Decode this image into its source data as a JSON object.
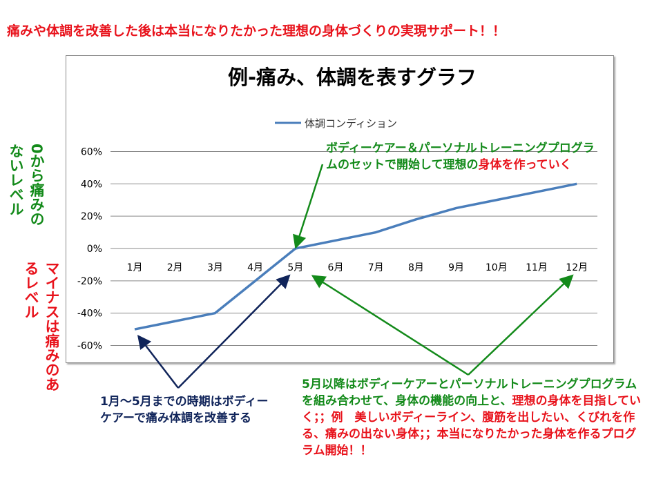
{
  "headline": "痛みや体調を改善した後は本当になりたかった理想の身体づくりの実現サポート！！",
  "side_labels": {
    "positive": "0から痛みのないレベル",
    "negative": "マイナスは痛みのあるレベル"
  },
  "notes": {
    "top": {
      "green": "ボディーケアー＆パーソナルトレーニングプログラムのセットで開始して理想の",
      "red": "身体を作っていく"
    },
    "left": "1月～5月までの時期はボディーケアーで痛み体調を改善する",
    "bottom": {
      "green": "5月以降はボディーケアーとパーソナルトレーニングプログラムを組み合わせて、身体の機能の向上と、",
      "red": "理想の身体を目指していく；；例　美しいボディーライン、腹筋を出したい、くびれを作る、痛みの出ない身体；；本当になりたかった身体を作るプログラム開始！！"
    }
  },
  "colors": {
    "line": "#4a7ebb",
    "green": "#138a1a",
    "red": "#e8121b",
    "navy": "#10245a"
  },
  "chart_data": {
    "type": "line",
    "title": "例-痛み、体調を表すグラフ",
    "categories": [
      "1月",
      "2月",
      "3月",
      "4月",
      "5月",
      "6月",
      "7月",
      "8月",
      "9月",
      "10月",
      "11月",
      "12月"
    ],
    "series": [
      {
        "name": "体調コンディション",
        "values": [
          -50,
          -45,
          -40,
          -20,
          0,
          5,
          10,
          18,
          25,
          30,
          35,
          40
        ]
      }
    ],
    "yticks": [
      "60%",
      "40%",
      "20%",
      "0%",
      "-20%",
      "-40%",
      "-60%"
    ],
    "ylim": [
      -60,
      60
    ],
    "grid": true,
    "legend": "top"
  }
}
